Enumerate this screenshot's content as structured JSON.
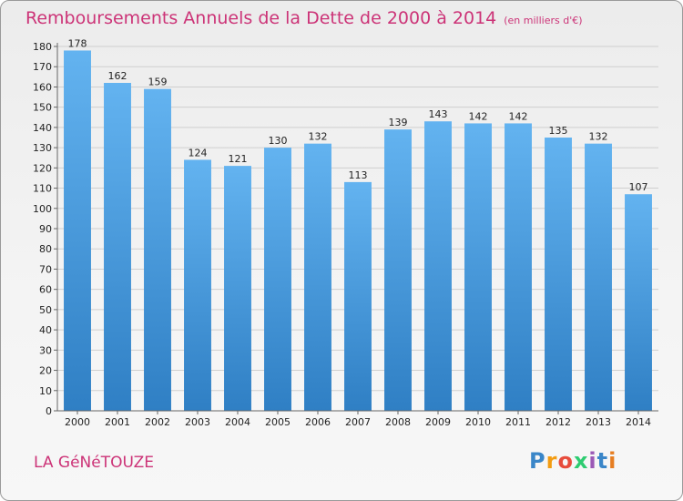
{
  "page": {
    "title": "Remboursements Annuels de la Dette de 2000 à 2014",
    "unit": "(en milliers d'€)",
    "commune": "LA GéNéTOUZE",
    "logo_letters": [
      "P",
      "r",
      "o",
      "x",
      "i",
      "t",
      "i"
    ],
    "logo_colors": [
      "#3a86c8",
      "#f39c12",
      "#e74c3c",
      "#2ecc71",
      "#9b59b6",
      "#3a86c8",
      "#e67e22"
    ]
  },
  "chart_data": {
    "type": "bar",
    "title": "Remboursements Annuels de la Dette de 2000 à 2014",
    "subtitle": "(en milliers d'€)",
    "xlabel": "",
    "ylabel": "",
    "categories": [
      "2000",
      "2001",
      "2002",
      "2003",
      "2004",
      "2005",
      "2006",
      "2007",
      "2008",
      "2009",
      "2010",
      "2011",
      "2012",
      "2013",
      "2014"
    ],
    "values": [
      178,
      162,
      159,
      124,
      121,
      130,
      132,
      113,
      139,
      143,
      142,
      142,
      135,
      132,
      107
    ],
    "ylim": [
      0,
      180
    ],
    "yticks": [
      0,
      10,
      20,
      30,
      40,
      50,
      60,
      70,
      80,
      90,
      100,
      110,
      120,
      130,
      140,
      150,
      160,
      170,
      180
    ],
    "grid": "horizontal",
    "show_data_labels": true,
    "bar_color": "#4a9fe0"
  }
}
